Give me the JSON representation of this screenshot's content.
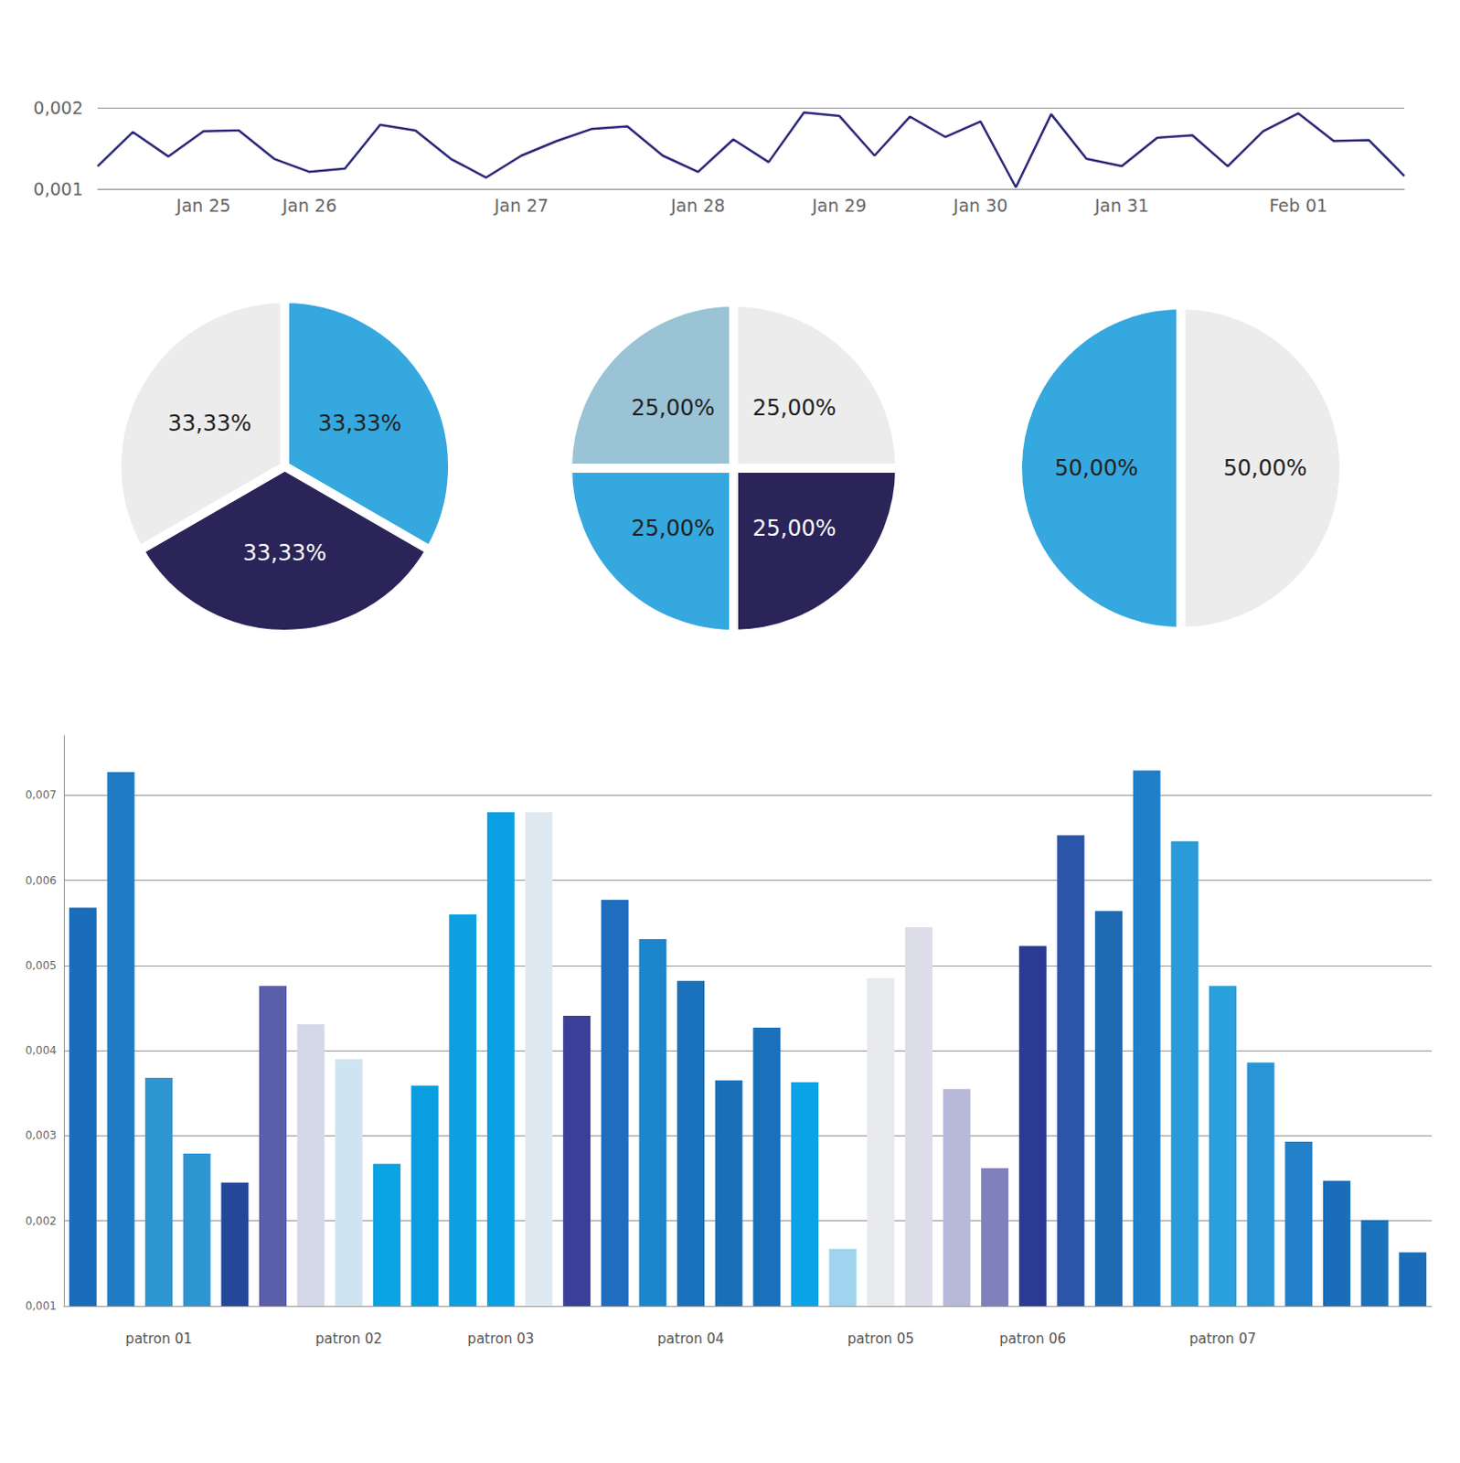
{
  "chart_data": [
    {
      "type": "line",
      "categories": [
        null,
        null,
        null,
        "Jan 25",
        null,
        null,
        "Jan 26",
        null,
        null,
        null,
        null,
        null,
        "Jan 27",
        null,
        null,
        null,
        null,
        "Jan 28",
        null,
        null,
        null,
        "Jan 29",
        null,
        null,
        null,
        "Jan 30",
        null,
        null,
        null,
        "Jan 31",
        null,
        null,
        null,
        null,
        "Feb 01",
        null,
        null,
        null
      ],
      "values": [
        0.00128,
        0.0017,
        0.0014,
        0.00171,
        0.00172,
        0.00137,
        0.00121,
        0.00125,
        0.00179,
        0.00172,
        0.00137,
        0.00114,
        0.00141,
        0.00159,
        0.00174,
        0.00177,
        0.00141,
        0.00121,
        0.00161,
        0.00133,
        0.00194,
        0.0019,
        0.00141,
        0.00189,
        0.00164,
        0.00183,
        0.00102,
        0.00192,
        0.00137,
        0.00128,
        0.00163,
        0.00166,
        0.00128,
        0.00171,
        0.00193,
        0.00159,
        0.0016,
        0.00116
      ],
      "color": "#2e2a7a",
      "ylim": [
        0.001,
        0.002
      ],
      "yticks": [
        {
          "value": 0.001,
          "label": "0,001"
        },
        {
          "value": 0.002,
          "label": "0,002"
        }
      ],
      "grid": true
    },
    {
      "type": "pie",
      "values": [
        33.33,
        33.33,
        33.33
      ],
      "value_labels": [
        "33,33%",
        "33,33%",
        "33,33%"
      ],
      "colors": [
        "#35a8df",
        "#2a2459",
        "#ececec"
      ],
      "data_labels": true
    },
    {
      "type": "pie",
      "values": [
        25,
        25,
        25,
        25
      ],
      "value_labels": [
        "25,00%",
        "25,00%",
        "25,00%",
        "25,00%"
      ],
      "colors": [
        "#ececec",
        "#2a2459",
        "#35a8df",
        "#9ac3d6"
      ],
      "data_labels": true
    },
    {
      "type": "pie",
      "values": [
        50,
        50
      ],
      "value_labels": [
        "50,00%",
        "50,00%"
      ],
      "colors": [
        "#ececec",
        "#35a8df"
      ],
      "data_labels": true
    },
    {
      "type": "bar",
      "categories": [
        null,
        null,
        "patron 01",
        null,
        null,
        null,
        null,
        "patron 02",
        null,
        null,
        null,
        "patron 03",
        null,
        null,
        null,
        null,
        "patron 04",
        null,
        null,
        null,
        null,
        "patron 05",
        null,
        null,
        null,
        "patron 06",
        null,
        null,
        null,
        null,
        "patron 07",
        null,
        null,
        null,
        null,
        null
      ],
      "values": [
        0.00568,
        0.00727,
        0.00368,
        0.00279,
        0.00245,
        0.00476,
        0.00431,
        0.0039,
        0.00267,
        0.00359,
        0.0056,
        0.0068,
        0.0068,
        0.00441,
        0.00577,
        0.00531,
        0.00482,
        0.00365,
        0.00427,
        0.00363,
        0.00167,
        0.00485,
        0.00545,
        0.00355,
        0.00262,
        0.00523,
        0.00653,
        0.00564,
        0.00729,
        0.00646,
        0.00476,
        0.00386,
        0.00293,
        0.00247,
        0.00201,
        0.00163
      ],
      "colors": [
        "#1a6db8",
        "#1f7cc4",
        "#2e95d3",
        "#2e95d3",
        "#25479a",
        "#5b5ea8",
        "#d5d8e8",
        "#cfe4f1",
        "#0aa3e3",
        "#0a9ee0",
        "#0d9fe0",
        "#0aa0e4",
        "#dfe9f2",
        "#3b3f98",
        "#1f6dbf",
        "#1c86cc",
        "#1a72bc",
        "#1a6fb9",
        "#1a70ba",
        "#0aa3e6",
        "#9fd3ee",
        "#e8e9ec",
        "#dcdde8",
        "#b8b8d8",
        "#8080bb",
        "#2b3a94",
        "#2a55a8",
        "#1f6ab3",
        "#1f7fc8",
        "#2a9ad8",
        "#2aa0dc",
        "#2a95d6",
        "#2180c8",
        "#1a6db8",
        "#1a72bc",
        "#1a6db8"
      ],
      "ylim": [
        0.001,
        0.0077
      ],
      "yticks": [
        {
          "value": 0.001,
          "label": "0,001"
        },
        {
          "value": 0.002,
          "label": "0,002"
        },
        {
          "value": 0.003,
          "label": "0,003"
        },
        {
          "value": 0.004,
          "label": "0,004"
        },
        {
          "value": 0.005,
          "label": "0,005"
        },
        {
          "value": 0.006,
          "label": "0,006"
        },
        {
          "value": 0.007,
          "label": "0,007"
        }
      ],
      "grid": true
    }
  ]
}
